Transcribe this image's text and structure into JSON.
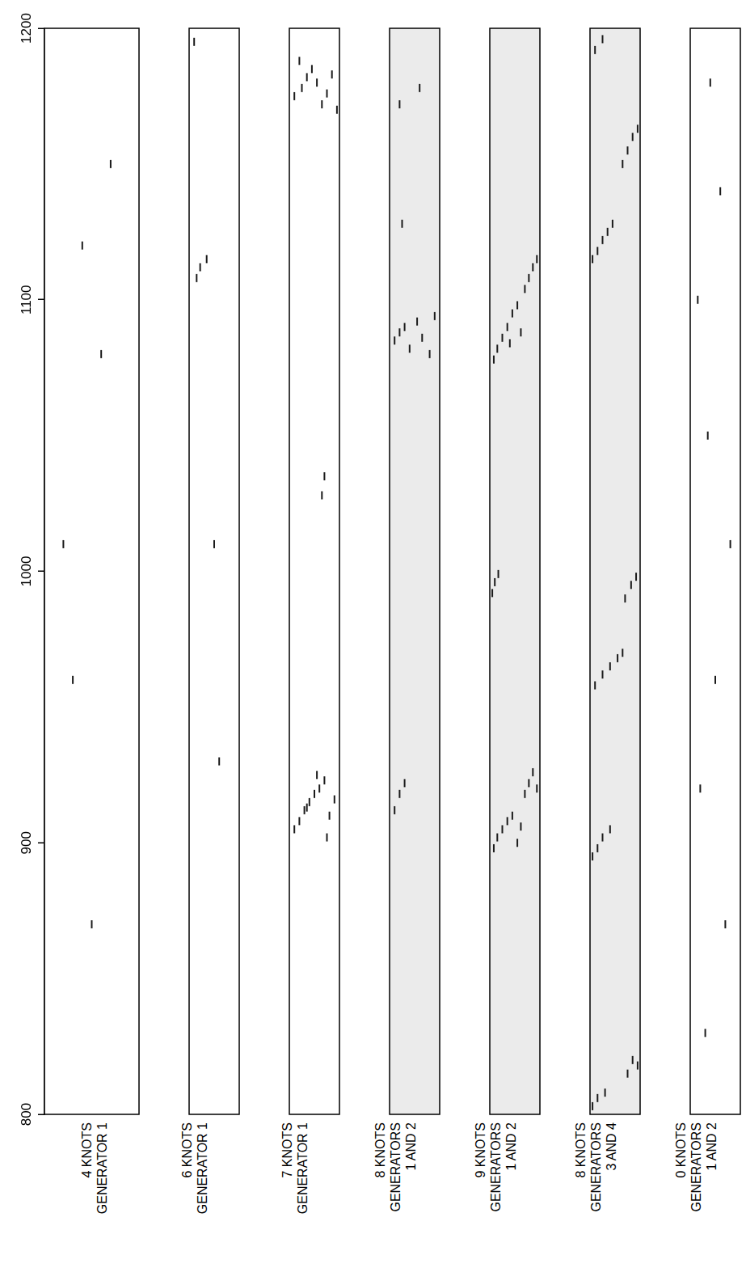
{
  "chart_data": [
    {
      "type": "scatter",
      "title": "4 KNOTS GENERATOR 1",
      "xlim": [
        800,
        1200
      ],
      "xticks": [
        800,
        900,
        1000,
        1100,
        1200
      ],
      "ylim": [
        0,
        1
      ],
      "tick_labels": "x",
      "marker": "line",
      "color": "#1a1a1a",
      "x": [
        1120,
        1080,
        960,
        870,
        1150,
        1010
      ],
      "values": [
        0.4,
        0.6,
        0.3,
        0.5,
        0.7,
        0.2
      ]
    },
    {
      "type": "scatter",
      "title": "6 KNOTS GENERATOR 1",
      "xlim": [
        800,
        1200
      ],
      "xticks": [
        800,
        900,
        1000,
        1100,
        1200
      ],
      "ylim": [
        0,
        1
      ],
      "tick_labels": false,
      "marker": "line",
      "color": "#1a1a1a",
      "x": [
        1108,
        1112,
        1115,
        1010,
        930,
        1195
      ],
      "values": [
        0.15,
        0.22,
        0.35,
        0.5,
        0.6,
        0.1
      ]
    },
    {
      "type": "scatter",
      "title": "7 KNOTS GENERATOR 1",
      "xlim": [
        800,
        1200
      ],
      "xticks": [
        800,
        900,
        1000,
        1100,
        1200
      ],
      "ylim": [
        0,
        1
      ],
      "tick_labels": false,
      "marker": "line",
      "color": "#1a1a1a",
      "x": [
        905,
        908,
        912,
        915,
        918,
        920,
        923,
        910,
        916,
        913,
        925,
        902,
        1175,
        1178,
        1182,
        1185,
        1180,
        1172,
        1176,
        1183,
        1188,
        1170,
        1028,
        1035
      ],
      "values": [
        0.1,
        0.2,
        0.3,
        0.4,
        0.5,
        0.6,
        0.7,
        0.8,
        0.9,
        0.35,
        0.55,
        0.75,
        0.1,
        0.25,
        0.35,
        0.45,
        0.55,
        0.65,
        0.75,
        0.85,
        0.2,
        0.95,
        0.65,
        0.7
      ]
    },
    {
      "type": "scatter",
      "title": "8 KNOTS GENERATORS 1 AND 2",
      "xlim": [
        800,
        1200
      ],
      "xticks": [
        800,
        900,
        1000,
        1100,
        1200
      ],
      "ylim": [
        0,
        1
      ],
      "tick_labels": false,
      "marker": "line",
      "color": "#1a1a1a",
      "x": [
        1085,
        1088,
        1090,
        1082,
        1092,
        1086,
        1080,
        1094,
        912,
        918,
        922,
        1172,
        1178,
        1128
      ],
      "values": [
        0.1,
        0.2,
        0.3,
        0.4,
        0.55,
        0.65,
        0.8,
        0.9,
        0.1,
        0.2,
        0.3,
        0.2,
        0.6,
        0.25
      ]
    },
    {
      "type": "scatter",
      "title": "9 KNOTS GENERATORS 1 AND 2",
      "xlim": [
        800,
        1200
      ],
      "xticks": [
        800,
        900,
        1000,
        1100,
        1200
      ],
      "ylim": [
        0,
        1
      ],
      "tick_labels": false,
      "marker": "line",
      "color": "#1a1a1a",
      "x": [
        1078,
        1082,
        1086,
        1090,
        1095,
        1098,
        1088,
        1084,
        1104,
        1108,
        1112,
        1115,
        898,
        902,
        905,
        908,
        910,
        900,
        906,
        918,
        922,
        926,
        920,
        992,
        996,
        999
      ],
      "values": [
        0.08,
        0.15,
        0.25,
        0.35,
        0.45,
        0.55,
        0.62,
        0.4,
        0.7,
        0.78,
        0.86,
        0.94,
        0.08,
        0.15,
        0.25,
        0.35,
        0.45,
        0.55,
        0.62,
        0.7,
        0.78,
        0.86,
        0.94,
        0.05,
        0.1,
        0.17
      ]
    },
    {
      "type": "scatter",
      "title": "8 KNOTS GENERATORS 3 AND 4",
      "xlim": [
        800,
        1200
      ],
      "xticks": [
        800,
        900,
        1000,
        1100,
        1200
      ],
      "ylim": [
        0,
        1
      ],
      "tick_labels": false,
      "marker": "line",
      "color": "#1a1a1a",
      "x": [
        803,
        806,
        808,
        815,
        820,
        818,
        895,
        898,
        902,
        905,
        958,
        962,
        965,
        968,
        970,
        990,
        995,
        998,
        1115,
        1118,
        1122,
        1125,
        1128,
        1150,
        1155,
        1160,
        1163,
        1192,
        1196
      ],
      "values": [
        0.05,
        0.15,
        0.3,
        0.75,
        0.85,
        0.95,
        0.05,
        0.15,
        0.25,
        0.4,
        0.1,
        0.25,
        0.4,
        0.55,
        0.65,
        0.7,
        0.82,
        0.92,
        0.05,
        0.15,
        0.25,
        0.35,
        0.45,
        0.65,
        0.75,
        0.85,
        0.95,
        0.1,
        0.25
      ]
    },
    {
      "type": "scatter",
      "title": "0 KNOTS GENERATORS 1 AND 2",
      "xlim": [
        800,
        1200
      ],
      "xticks": [
        800,
        900,
        1000,
        1100,
        1200
      ],
      "ylim": [
        0,
        1
      ],
      "tick_labels": false,
      "marker": "line",
      "color": "#1a1a1a",
      "x": [
        830,
        870,
        920,
        960,
        1010,
        1050,
        1100,
        1140,
        1180
      ],
      "values": [
        0.3,
        0.7,
        0.2,
        0.5,
        0.8,
        0.35,
        0.15,
        0.6,
        0.4
      ]
    }
  ]
}
